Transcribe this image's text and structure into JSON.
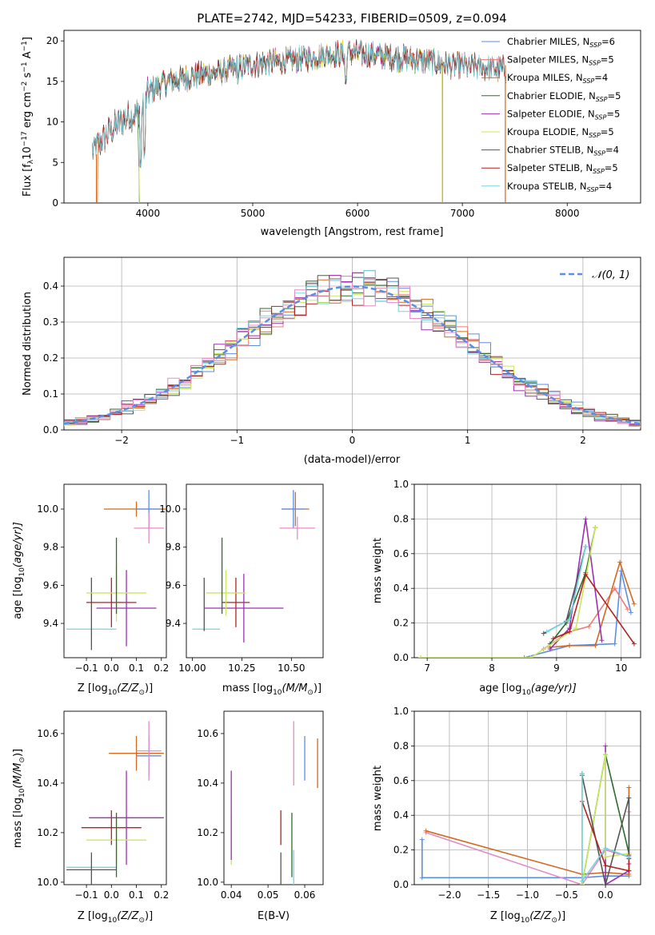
{
  "chart_data": [
    {
      "id": "spectrum",
      "type": "line",
      "title": "PLATE=2742, MJD=54233, FIBERID=0509, z=0.094",
      "xlabel": "wavelength [Angstrom, rest frame]",
      "ylabel": "Flux [fλ10⁻¹⁷ erg cm⁻² s⁻¹ A⁻¹]",
      "xlim": [
        3200,
        8700
      ],
      "ylim": [
        0,
        21.3
      ],
      "xticks": [
        4000,
        5000,
        6000,
        7000,
        8000
      ],
      "yticks": [
        0,
        5,
        10,
        15,
        20
      ],
      "grid": false,
      "legend_position": "upper-right",
      "continuum": {
        "x": [
          3470,
          3550,
          3650,
          3750,
          3850,
          3950,
          4000,
          4100,
          4200,
          4300,
          4500,
          4700,
          4900,
          5100,
          5300,
          5500,
          5700,
          5900,
          6100,
          6300,
          6500,
          6700,
          6900,
          7100,
          7300,
          7420
        ],
        "y": [
          6.5,
          7.5,
          9.0,
          10.2,
          10.8,
          11.5,
          13.5,
          14.5,
          15.0,
          15.3,
          15.8,
          16.2,
          16.8,
          17.3,
          17.5,
          17.8,
          18.3,
          18.5,
          18.3,
          18.0,
          17.8,
          17.4,
          17.0,
          16.8,
          16.5,
          16.5
        ]
      },
      "dips": [
        {
          "x": 3930,
          "y": 4.2
        },
        {
          "x": 3968,
          "y": 5.5
        },
        {
          "x": 5890,
          "y": 14.5
        },
        {
          "x": 4861,
          "y": 15.0
        }
      ],
      "series": [
        {
          "name": "Chabrier MILES, N_SSP=6",
          "label_main": "Chabrier MILES, N",
          "sub": "SSP",
          "tail": "=6",
          "color": "#5b8ee6",
          "x_start": 3500,
          "x_end": 7420,
          "drop_x": null
        },
        {
          "name": "Salpeter MILES, N_SSP=5",
          "label_main": "Salpeter MILES, N",
          "sub": "SSP",
          "tail": "=5",
          "color": "#ef7b7b",
          "x_start": 3500,
          "x_end": 7420,
          "drop_x": null
        },
        {
          "name": "Kroupa MILES, N_SSP=4",
          "label_main": "Kroupa MILES, N",
          "sub": "SSP",
          "tail": "=4",
          "color": "#d2691e",
          "x_start": 3520,
          "x_end": 7410,
          "drop_x": 3520
        },
        {
          "name": "Chabrier ELODIE, N_SSP=5",
          "label_main": "Chabrier ELODIE, N",
          "sub": "SSP",
          "tail": "=5",
          "color": "#2e6b2e",
          "x_start": 3900,
          "x_end": 6800,
          "drop_x": 3920
        },
        {
          "name": "Salpeter ELODIE, N_SSP=5",
          "label_main": "Salpeter ELODIE, N",
          "sub": "SSP",
          "tail": "=5",
          "color": "#9b30b0",
          "x_start": 3900,
          "x_end": 6800,
          "drop_x": null
        },
        {
          "name": "Kroupa ELODIE, N_SSP=5",
          "label_main": "Kroupa ELODIE, N",
          "sub": "SSP",
          "tail": "=5",
          "color": "#d6e64a",
          "x_start": 3900,
          "x_end": 6810,
          "drop_x": 6810
        },
        {
          "name": "Chabrier STELIB, N_SSP=4",
          "label_main": "Chabrier STELIB, N",
          "sub": "SSP",
          "tail": "=4",
          "color": "#555555",
          "x_start": 3470,
          "x_end": 7420,
          "drop_x": null
        },
        {
          "name": "Salpeter STELIB, N_SSP=5",
          "label_main": "Salpeter STELIB, N",
          "sub": "SSP",
          "tail": "=5",
          "color": "#b22222",
          "x_start": 3470,
          "x_end": 7420,
          "drop_x": null
        },
        {
          "name": "Kroupa STELIB, N_SSP=4",
          "label_main": "Kroupa STELIB, N",
          "sub": "SSP",
          "tail": "=4",
          "color": "#70d6e0",
          "x_start": 3470,
          "x_end": 7420,
          "drop_x": null
        }
      ]
    },
    {
      "id": "residuals",
      "type": "histogram",
      "xlabel": "(data-model)/error",
      "ylabel": "Normed distribution",
      "xlim": [
        -2.5,
        2.5
      ],
      "ylim": [
        0,
        0.48
      ],
      "xticks": [
        -2,
        -1,
        0,
        1,
        2
      ],
      "yticks": [
        0.0,
        0.1,
        0.2,
        0.3,
        0.4
      ],
      "grid": true,
      "legend_position": "upper-right",
      "legend_label": "𝒩(0, 1)",
      "gaussian_color": "#5b8ee6",
      "bin_width": 0.1,
      "colors": [
        "#5b8ee6",
        "#ef7b7b",
        "#d2691e",
        "#2e6b2e",
        "#9b30b0",
        "#c8e860",
        "#555555",
        "#b22222",
        "#70d6e0",
        "#e88ac8"
      ]
    },
    {
      "id": "age-vs-z",
      "type": "errorbar",
      "xlabel": "Z [log10(Z/Z⊙)]",
      "ylabel": "age [log10(age/yr)]",
      "xlim": [
        -0.19,
        0.22
      ],
      "ylim": [
        9.22,
        10.13
      ],
      "xticks": [
        -0.1,
        0.0,
        0.1,
        0.2
      ],
      "yticks": [
        9.4,
        9.6,
        9.8,
        10.0
      ],
      "points": [
        {
          "x": -0.08,
          "xerr": 0.1,
          "y": 9.37,
          "yerr": 0.0,
          "color": "#70d6e0"
        },
        {
          "x": -0.08,
          "xerr": 0.0,
          "y": 9.45,
          "yerr": 0.19,
          "color": "#555555"
        },
        {
          "x": 0.0,
          "xerr": 0.1,
          "y": 9.51,
          "yerr": 0.13,
          "color": "#b22222"
        },
        {
          "x": 0.06,
          "xerr": 0.12,
          "y": 9.48,
          "yerr": 0.2,
          "color": "#9b30b0"
        },
        {
          "x": 0.02,
          "xerr": 0.12,
          "y": 9.56,
          "yerr": 0.15,
          "color": "#c8e860"
        },
        {
          "x": 0.02,
          "xerr": 0.0,
          "y": 9.65,
          "yerr": 0.2,
          "color": "#2e6b2e"
        },
        {
          "x": 0.1,
          "xerr": 0.13,
          "y": 10.0,
          "yerr": 0.04,
          "color": "#d2691e"
        },
        {
          "x": 0.15,
          "xerr": 0.05,
          "y": 10.0,
          "yerr": 0.1,
          "color": "#5b8ee6"
        },
        {
          "x": 0.15,
          "xerr": 0.06,
          "y": 9.9,
          "yerr": 0.08,
          "color": "#e88ac8"
        }
      ]
    },
    {
      "id": "age-vs-mass",
      "type": "errorbar",
      "xlabel": "mass [log10(M/M⊙)]",
      "ylabel": "",
      "xlim": [
        9.97,
        10.66
      ],
      "ylim": [
        9.22,
        10.13
      ],
      "xticks": [
        10.0,
        10.25,
        10.5
      ],
      "yticks": [
        9.4,
        9.6,
        9.8,
        10.0
      ],
      "points": [
        {
          "x": 10.07,
          "xerr": 0.07,
          "y": 9.37,
          "yerr": 0.0,
          "color": "#70d6e0"
        },
        {
          "x": 10.06,
          "xerr": 0.0,
          "y": 9.5,
          "yerr": 0.14,
          "color": "#555555"
        },
        {
          "x": 10.22,
          "xerr": 0.07,
          "y": 9.51,
          "yerr": 0.13,
          "color": "#b22222"
        },
        {
          "x": 10.26,
          "xerr": 0.2,
          "y": 9.48,
          "yerr": 0.18,
          "color": "#9b30b0"
        },
        {
          "x": 10.17,
          "xerr": 0.1,
          "y": 9.56,
          "yerr": 0.12,
          "color": "#c8e860"
        },
        {
          "x": 10.15,
          "xerr": 0.0,
          "y": 9.65,
          "yerr": 0.2,
          "color": "#2e6b2e"
        },
        {
          "x": 10.52,
          "xerr": 0.07,
          "y": 10.0,
          "yerr": 0.09,
          "color": "#d2691e"
        },
        {
          "x": 10.51,
          "xerr": 0.06,
          "y": 10.0,
          "yerr": 0.1,
          "color": "#5b8ee6"
        },
        {
          "x": 10.53,
          "xerr": 0.09,
          "y": 9.9,
          "yerr": 0.06,
          "color": "#e88ac8"
        }
      ]
    },
    {
      "id": "weight-vs-age",
      "type": "line",
      "xlabel": "age [log10(age/yr)]",
      "ylabel": "mass weight",
      "xlim": [
        6.8,
        10.3
      ],
      "ylim": [
        0.0,
        1.0
      ],
      "xticks": [
        7,
        8,
        9,
        10
      ],
      "yticks": [
        0.0,
        0.2,
        0.4,
        0.6,
        0.8,
        1.0
      ],
      "grid": true,
      "series": [
        {
          "color": "#5b8ee6",
          "x": [
            6.9,
            8.5,
            9.2,
            9.9,
            10.0,
            10.15
          ],
          "y": [
            0.0,
            0.0,
            0.07,
            0.08,
            0.5,
            0.26
          ]
        },
        {
          "color": "#ef7b7b",
          "x": [
            8.8,
            9.2,
            9.5,
            9.9,
            10.1
          ],
          "y": [
            0.05,
            0.15,
            0.18,
            0.4,
            0.28
          ]
        },
        {
          "color": "#d2691e",
          "x": [
            8.9,
            9.2,
            9.6,
            9.98,
            10.2
          ],
          "y": [
            0.06,
            0.07,
            0.07,
            0.55,
            0.31
          ]
        },
        {
          "color": "#2e6b2e",
          "x": [
            8.9,
            9.15,
            9.45,
            9.6
          ],
          "y": [
            0.08,
            0.2,
            0.49,
            0.75
          ]
        },
        {
          "color": "#9b30b0",
          "x": [
            8.9,
            9.2,
            9.45,
            9.7
          ],
          "y": [
            0.05,
            0.17,
            0.8,
            0.1
          ]
        },
        {
          "color": "#c8e860",
          "x": [
            6.9,
            8.6,
            9.3,
            9.6
          ],
          "y": [
            0.0,
            0.0,
            0.17,
            0.75
          ]
        },
        {
          "color": "#555555",
          "x": [
            8.8,
            9.15,
            9.45
          ],
          "y": [
            0.14,
            0.21,
            0.64
          ]
        },
        {
          "color": "#b22222",
          "x": [
            8.95,
            9.2,
            9.45,
            10.2
          ],
          "y": [
            0.11,
            0.15,
            0.48,
            0.08
          ]
        },
        {
          "color": "#70d6e0",
          "x": [
            8.85,
            9.2,
            9.45
          ],
          "y": [
            0.15,
            0.22,
            0.64
          ]
        }
      ]
    },
    {
      "id": "mass-vs-z",
      "type": "errorbar",
      "xlabel": "Z [log10(Z/Z⊙)]",
      "ylabel": "mass [log10(M/M⊙)]",
      "xlim": [
        -0.19,
        0.22
      ],
      "ylim": [
        9.99,
        10.69
      ],
      "xticks": [
        -0.1,
        0.0,
        0.1,
        0.2
      ],
      "yticks": [
        10.0,
        10.2,
        10.4,
        10.6
      ],
      "points": [
        {
          "x": -0.08,
          "xerr": 0.1,
          "y": 10.06,
          "yerr": 0.0,
          "color": "#70d6e0"
        },
        {
          "x": -0.08,
          "xerr": 0.1,
          "y": 10.05,
          "yerr": 0.07,
          "color": "#555555"
        },
        {
          "x": 0.0,
          "xerr": 0.12,
          "y": 10.22,
          "yerr": 0.07,
          "color": "#b22222"
        },
        {
          "x": 0.06,
          "xerr": 0.15,
          "y": 10.26,
          "yerr": 0.19,
          "color": "#9b30b0"
        },
        {
          "x": 0.02,
          "xerr": 0.12,
          "y": 10.17,
          "yerr": 0.1,
          "color": "#c8e860"
        },
        {
          "x": 0.02,
          "xerr": 0.0,
          "y": 10.15,
          "yerr": 0.13,
          "color": "#2e6b2e"
        },
        {
          "x": 0.1,
          "xerr": 0.11,
          "y": 10.52,
          "yerr": 0.07,
          "color": "#d2691e"
        },
        {
          "x": 0.15,
          "xerr": 0.05,
          "y": 10.51,
          "yerr": 0.08,
          "color": "#5b8ee6"
        },
        {
          "x": 0.15,
          "xerr": 0.05,
          "y": 10.53,
          "yerr": 0.12,
          "color": "#e88ac8"
        }
      ]
    },
    {
      "id": "mass-vs-ebv",
      "type": "errorbar",
      "xlabel": "E(B-V)",
      "ylabel": "",
      "xlim": [
        0.038,
        0.065
      ],
      "ylim": [
        9.99,
        10.69
      ],
      "xticks": [
        0.04,
        0.05,
        0.06
      ],
      "yticks": [
        10.0,
        10.2,
        10.4,
        10.6
      ],
      "points": [
        {
          "x": 0.04,
          "xerr": 0.0,
          "y": 10.17,
          "yerr": 0.1,
          "color": "#c8e860"
        },
        {
          "x": 0.04,
          "xerr": 0.0,
          "y": 10.27,
          "yerr": 0.18,
          "color": "#9b30b0"
        },
        {
          "x": 0.0535,
          "xerr": 0.0,
          "y": 10.05,
          "yerr": 0.07,
          "color": "#555555"
        },
        {
          "x": 0.0535,
          "xerr": 0.0,
          "y": 10.22,
          "yerr": 0.07,
          "color": "#b22222"
        },
        {
          "x": 0.0565,
          "xerr": 0.0,
          "y": 10.15,
          "yerr": 0.13,
          "color": "#2e6b2e"
        },
        {
          "x": 0.057,
          "xerr": 0.0,
          "y": 10.06,
          "yerr": 0.07,
          "color": "#70d6e0"
        },
        {
          "x": 0.057,
          "xerr": 0.0,
          "y": 10.52,
          "yerr": 0.13,
          "color": "#e88ac8"
        },
        {
          "x": 0.06,
          "xerr": 0.0,
          "y": 10.5,
          "yerr": 0.09,
          "color": "#5b8ee6"
        },
        {
          "x": 0.0635,
          "xerr": 0.0,
          "y": 10.48,
          "yerr": 0.1,
          "color": "#d2691e"
        }
      ]
    },
    {
      "id": "weight-vs-z",
      "type": "line",
      "xlabel": "Z [log10(Z/Z⊙)]",
      "ylabel": "mass weight",
      "xlim": [
        -2.45,
        0.45
      ],
      "ylim": [
        0.0,
        1.0
      ],
      "xticks": [
        -2.0,
        -1.5,
        -1.0,
        -0.5,
        0.0
      ],
      "yticks": [
        0.0,
        0.2,
        0.4,
        0.6,
        0.8,
        1.0
      ],
      "grid": true,
      "series": [
        {
          "color": "#5b8ee6",
          "x": [
            -2.35,
            -2.35,
            -0.3,
            0.0,
            0.3
          ],
          "y": [
            0.26,
            0.04,
            0.04,
            0.05,
            0.05
          ]
        },
        {
          "color": "#e88ac8",
          "x": [
            -2.3,
            -0.3,
            0.0,
            0.3,
            0.3
          ],
          "y": [
            0.3,
            0.0,
            0.2,
            0.16,
            0.42
          ]
        },
        {
          "color": "#d2691e",
          "x": [
            -2.3,
            -0.3,
            0.0,
            0.3,
            0.3
          ],
          "y": [
            0.31,
            0.06,
            0.07,
            0.06,
            0.56
          ]
        },
        {
          "color": "#2e6b2e",
          "x": [
            -0.3,
            -0.3,
            0.0,
            0.3
          ],
          "y": [
            0.64,
            0.0,
            0.75,
            0.18
          ]
        },
        {
          "color": "#9b30b0",
          "x": [
            0.0,
            0.0,
            0.3,
            0.3
          ],
          "y": [
            0.8,
            0.0,
            0.08,
            0.12
          ]
        },
        {
          "color": "#c8e860",
          "x": [
            -0.3,
            0.0,
            0.0,
            0.3
          ],
          "y": [
            0.0,
            0.75,
            0.16,
            0.18
          ]
        },
        {
          "color": "#555555",
          "x": [
            -0.3,
            0.0,
            0.3,
            0.3
          ],
          "y": [
            0.63,
            0.0,
            0.5,
            0.15
          ]
        },
        {
          "color": "#b22222",
          "x": [
            -0.3,
            0.0,
            0.3,
            0.3
          ],
          "y": [
            0.48,
            0.11,
            0.08,
            0.17
          ]
        },
        {
          "color": "#70d6e0",
          "x": [
            -0.3,
            -0.3,
            0.0,
            0.3
          ],
          "y": [
            0.64,
            0.02,
            0.21,
            0.16
          ]
        }
      ]
    }
  ]
}
